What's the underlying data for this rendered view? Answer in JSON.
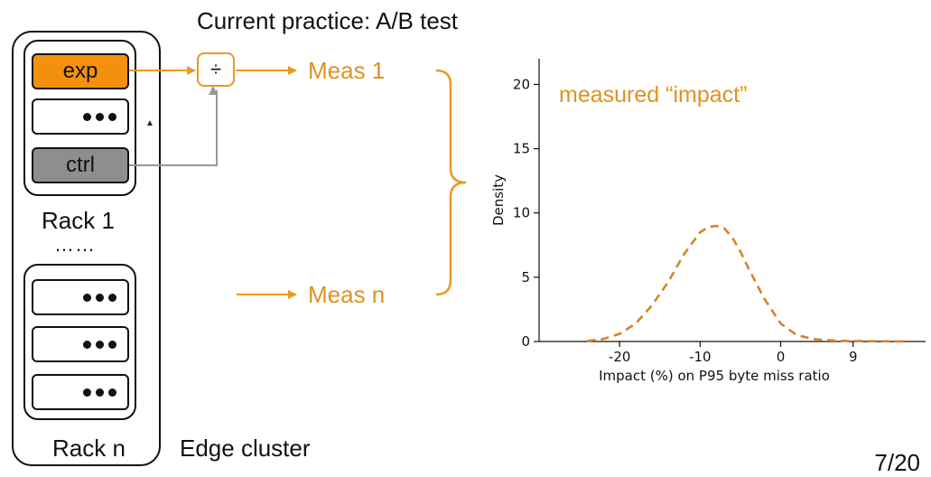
{
  "slide": {
    "title": "Current practice: A/B test",
    "page_number": "7/20"
  },
  "cluster": {
    "edge_label": "Edge cluster",
    "rack1": {
      "label": "Rack 1",
      "servers": [
        {
          "label": "exp",
          "color": "#f5900f"
        },
        {
          "label": "",
          "kind": "dots"
        },
        {
          "label": "ctrl",
          "color": "#8e8e8e"
        }
      ]
    },
    "ellipsis": "……",
    "rackn": {
      "label": "Rack n"
    }
  },
  "flow": {
    "divide_symbol": "÷",
    "meas1": "Meas 1",
    "measn": "Meas n",
    "arrow_color": "#e89a24",
    "ctrl_line_color": "#999999"
  },
  "chart_data": {
    "type": "line",
    "annotation": "measured “impact”",
    "annotation_color": "#e0921e",
    "xlabel": "Impact (%) on P95 byte miss ratio",
    "ylabel": "Density",
    "x_ticks": [
      -20,
      -10,
      0,
      9
    ],
    "x_tick_labels": [
      "-20",
      "-10",
      "0",
      "9"
    ],
    "y_ticks": [
      0,
      5,
      10,
      15,
      20
    ],
    "y_tick_labels": [
      "0",
      "5",
      "10",
      "15",
      "20"
    ],
    "xlim": [
      -30,
      18
    ],
    "ylim": [
      0,
      22
    ],
    "line_style": "dashed",
    "line_color": "#d4842a",
    "series": [
      {
        "x": [
          -24,
          -22,
          -20,
          -18,
          -16,
          -14,
          -12,
          -10,
          -9,
          -8,
          -7,
          -6,
          -5,
          -4,
          -2,
          0,
          2,
          4,
          6,
          8,
          10,
          12,
          14,
          16
        ],
        "y": [
          0.05,
          0.2,
          0.6,
          1.4,
          2.8,
          4.6,
          6.8,
          8.5,
          8.9,
          9.0,
          8.8,
          8.1,
          7.0,
          5.7,
          3.3,
          1.4,
          0.5,
          0.2,
          0.1,
          0.05,
          0.03,
          0.02,
          0.01,
          0.0
        ]
      }
    ]
  }
}
